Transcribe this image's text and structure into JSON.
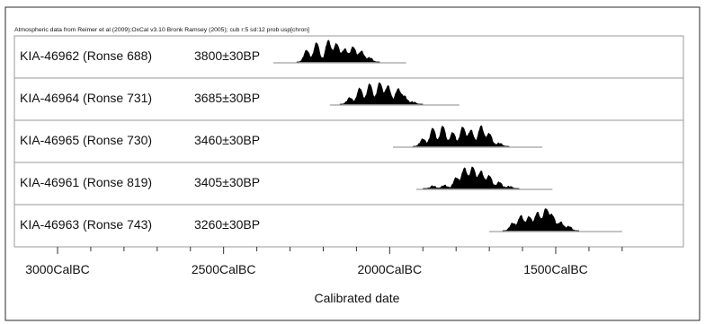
{
  "chart_data": {
    "type": "area",
    "title": "Atmospheric data from Reimer et al (2009);OxCal v3.10 Bronk Ramsey (2005); cub r:5 sd:12 prob usp[chron]",
    "xlabel": "Calibrated date",
    "ylabel": "",
    "x_unit": "CalBC",
    "xlim": [
      3050,
      1300
    ],
    "x_ticks_major": [
      {
        "value": 3000,
        "label": "3000CalBC"
      },
      {
        "value": 2500,
        "label": "2500CalBC"
      },
      {
        "value": 2000,
        "label": "2000CalBC"
      },
      {
        "value": 1500,
        "label": "1500CalBC"
      }
    ],
    "grid": false,
    "series": [
      {
        "name": "KIA-46962 (Ronse 688)",
        "date": "3800±30BP",
        "range": [
          2350,
          1950
        ],
        "peaks": [
          [
            2250,
            0.55
          ],
          [
            2220,
            0.9
          ],
          [
            2185,
            1.0
          ],
          [
            2160,
            0.85
          ],
          [
            2135,
            0.6
          ],
          [
            2110,
            0.7
          ],
          [
            2085,
            0.5
          ],
          [
            2060,
            0.2
          ]
        ]
      },
      {
        "name": "KIA-46964 (Ronse 731)",
        "date": "3685±30BP",
        "range": [
          2180,
          1790
        ],
        "peaks": [
          [
            2120,
            0.3
          ],
          [
            2090,
            0.75
          ],
          [
            2060,
            0.95
          ],
          [
            2030,
            1.0
          ],
          [
            2005,
            0.85
          ],
          [
            1975,
            0.7
          ],
          [
            1955,
            0.35
          ],
          [
            1930,
            0.1
          ]
        ]
      },
      {
        "name": "KIA-46965 (Ronse 730)",
        "date": "3460±30BP",
        "range": [
          1990,
          1540
        ],
        "peaks": [
          [
            1900,
            0.35
          ],
          [
            1870,
            0.85
          ],
          [
            1840,
            0.95
          ],
          [
            1810,
            0.65
          ],
          [
            1780,
            0.9
          ],
          [
            1755,
            0.75
          ],
          [
            1725,
            0.95
          ],
          [
            1700,
            0.6
          ],
          [
            1670,
            0.15
          ]
        ]
      },
      {
        "name": "KIA-46961 (Ronse 819)",
        "date": "3405±30BP",
        "range": [
          1920,
          1510
        ],
        "peaks": [
          [
            1870,
            0.12
          ],
          [
            1835,
            0.15
          ],
          [
            1800,
            0.5
          ],
          [
            1775,
            0.95
          ],
          [
            1750,
            1.0
          ],
          [
            1725,
            0.8
          ],
          [
            1700,
            0.6
          ],
          [
            1670,
            0.3
          ],
          [
            1640,
            0.1
          ]
        ]
      },
      {
        "name": "KIA-46963 (Ronse 743)",
        "date": "3260±30BP",
        "range": [
          1700,
          1300
        ],
        "peaks": [
          [
            1630,
            0.35
          ],
          [
            1605,
            0.7
          ],
          [
            1580,
            0.65
          ],
          [
            1555,
            0.85
          ],
          [
            1530,
            1.0
          ],
          [
            1510,
            0.7
          ],
          [
            1485,
            0.4
          ],
          [
            1460,
            0.2
          ]
        ]
      }
    ]
  }
}
